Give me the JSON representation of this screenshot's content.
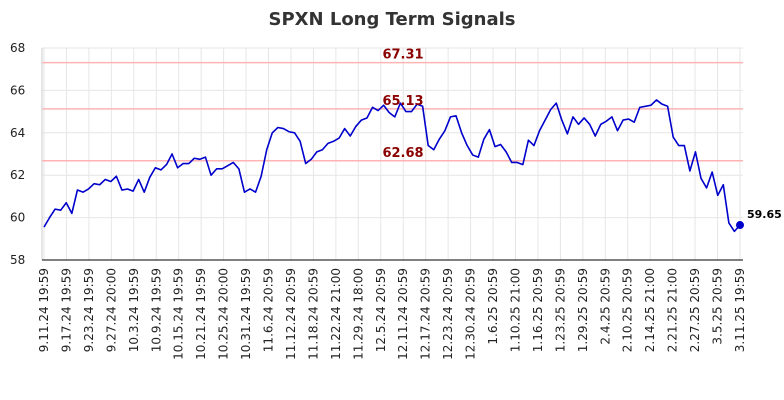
{
  "chart_data": {
    "type": "line",
    "title": "SPXN Long Term Signals",
    "xlabel": "",
    "ylabel": "",
    "ylim": [
      58,
      68
    ],
    "yticks": [
      58,
      60,
      62,
      64,
      66,
      68
    ],
    "grid": true,
    "x_tick_labels": [
      "9.11.24 19:59",
      "9.17.24 19:59",
      "9.23.24 19:59",
      "9.27.24 20:00",
      "10.3.24 19:59",
      "10.9.24 19:59",
      "10.15.24 19:59",
      "10.21.24 19:59",
      "10.25.24 20:00",
      "10.31.24 19:59",
      "11.6.24 20:59",
      "11.12.24 20:59",
      "11.18.24 20:59",
      "11.22.24 21:00",
      "11.29.24 18:00",
      "12.5.24 20:59",
      "12.11.24 20:59",
      "12.17.24 20:59",
      "12.23.24 20:59",
      "12.30.24 20:59",
      "1.6.25 20:59",
      "1.10.25 21:00",
      "1.16.25 20:59",
      "1.23.25 20:59",
      "1.29.25 20:59",
      "2.4.25 20:59",
      "2.10.25 20:59",
      "2.14.25 21:00",
      "2.21.25 21:00",
      "2.27.25 20:59",
      "3.5.25 20:59",
      "3.11.25 19:59"
    ],
    "reference_lines": [
      {
        "value": 67.31,
        "label": "67.31",
        "color": "#ffb3b3"
      },
      {
        "value": 65.13,
        "label": "65.13",
        "color": "#ffb3b3"
      },
      {
        "value": 62.68,
        "label": "62.68",
        "color": "#ffb3b3"
      }
    ],
    "series": [
      {
        "name": "SPXN",
        "color": "#0000cc",
        "values": [
          59.55,
          60.0,
          60.4,
          60.35,
          60.7,
          60.2,
          61.3,
          61.2,
          61.35,
          61.6,
          61.55,
          61.8,
          61.7,
          61.95,
          61.3,
          61.35,
          61.25,
          61.8,
          61.2,
          61.9,
          62.35,
          62.25,
          62.5,
          63.0,
          62.35,
          62.55,
          62.55,
          62.8,
          62.75,
          62.85,
          62.0,
          62.3,
          62.3,
          62.45,
          62.6,
          62.3,
          61.2,
          61.35,
          61.2,
          61.95,
          63.2,
          64.0,
          64.25,
          64.2,
          64.05,
          64.0,
          63.6,
          62.55,
          62.75,
          63.1,
          63.2,
          63.5,
          63.6,
          63.75,
          64.2,
          63.85,
          64.3,
          64.6,
          64.7,
          65.2,
          65.05,
          65.3,
          64.95,
          64.75,
          65.4,
          65.0,
          65.0,
          65.35,
          65.25,
          63.4,
          63.2,
          63.7,
          64.1,
          64.75,
          64.8,
          64.0,
          63.4,
          62.95,
          62.85,
          63.7,
          64.15,
          63.35,
          63.45,
          63.1,
          62.6,
          62.6,
          62.5,
          63.65,
          63.4,
          64.1,
          64.6,
          65.1,
          65.4,
          64.6,
          63.95,
          64.75,
          64.4,
          64.7,
          64.4,
          63.85,
          64.4,
          64.55,
          64.75,
          64.1,
          64.6,
          64.65,
          64.5,
          65.2,
          65.25,
          65.3,
          65.55,
          65.35,
          65.25,
          63.8,
          63.4,
          63.4,
          62.2,
          63.1,
          61.85,
          61.4,
          62.15,
          61.05,
          61.55,
          59.75,
          59.35,
          59.65
        ]
      }
    ],
    "last_value": 59.65,
    "last_value_label": "59.65"
  }
}
